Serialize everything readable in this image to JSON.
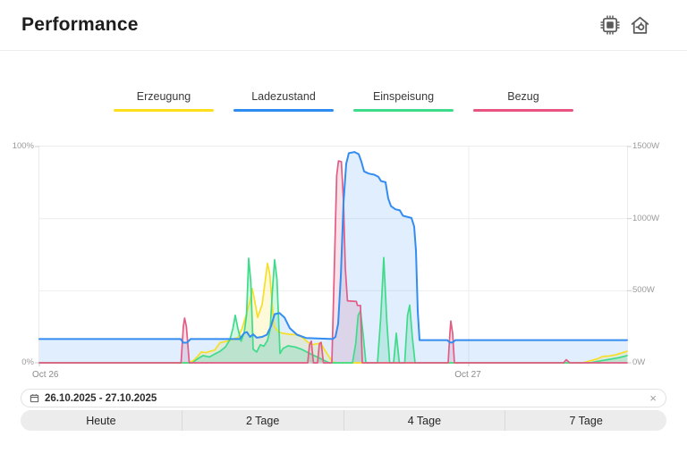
{
  "header": {
    "title": "Performance",
    "icons": [
      {
        "name": "chip-icon"
      },
      {
        "name": "home-energy-icon"
      }
    ]
  },
  "legend": {
    "items": [
      {
        "label": "Erzeugung",
        "color": "#FFDF1B"
      },
      {
        "label": "Ladezustand",
        "color": "#2E8BF0"
      },
      {
        "label": "Einspeisung",
        "color": "#3EDC8A"
      },
      {
        "label": "Bezug",
        "color": "#E8537F"
      }
    ]
  },
  "chart_data": {
    "type": "line",
    "x_hours_max": 32.85,
    "x_axis": {
      "ticks": [
        {
          "h": 0,
          "label": "Oct 26",
          "align": "left"
        },
        {
          "h": 24,
          "label": "Oct 27",
          "align": "center"
        }
      ]
    },
    "left_axis": {
      "max": 100,
      "unit": "%",
      "ticks": [
        {
          "v": 100,
          "label": "100%"
        },
        {
          "v": 0,
          "label": "0%"
        }
      ]
    },
    "right_axis": {
      "max": 1500,
      "unit": "W",
      "ticks": [
        {
          "v": 1500,
          "label": "1500W"
        },
        {
          "v": 1000,
          "label": "1000W"
        },
        {
          "v": 500,
          "label": "500W"
        },
        {
          "v": 0,
          "label": "0W"
        }
      ]
    },
    "grid": {
      "color": "#ededed",
      "tick_color": "#cfcfcf"
    },
    "series": [
      {
        "name": "Erzeugung",
        "axis": "right",
        "color": "#F7DF25",
        "fill": "rgba(246,222,46,0.18)",
        "points": [
          [
            0,
            0
          ],
          [
            8.3,
            0
          ],
          [
            8.6,
            15
          ],
          [
            8.85,
            45
          ],
          [
            9.05,
            75
          ],
          [
            9.3,
            70
          ],
          [
            9.55,
            80
          ],
          [
            9.8,
            88
          ],
          [
            10.1,
            140
          ],
          [
            10.5,
            150
          ],
          [
            10.8,
            162
          ],
          [
            11.1,
            175
          ],
          [
            11.35,
            245
          ],
          [
            11.6,
            350
          ],
          [
            11.78,
            430
          ],
          [
            11.9,
            515
          ],
          [
            12.05,
            420
          ],
          [
            12.2,
            315
          ],
          [
            12.45,
            405
          ],
          [
            12.6,
            545
          ],
          [
            12.75,
            690
          ],
          [
            12.88,
            615
          ],
          [
            13,
            420
          ],
          [
            13.12,
            255
          ],
          [
            13.35,
            215
          ],
          [
            13.6,
            205
          ],
          [
            14,
            198
          ],
          [
            14.35,
            195
          ],
          [
            14.65,
            180
          ],
          [
            14.95,
            150
          ],
          [
            15.2,
            125
          ],
          [
            15.55,
            132
          ],
          [
            15.72,
            140
          ],
          [
            15.92,
            95
          ],
          [
            16.15,
            50
          ],
          [
            16.35,
            12
          ],
          [
            16.5,
            0
          ],
          [
            30.4,
            0
          ],
          [
            30.8,
            14
          ],
          [
            31.2,
            28
          ],
          [
            31.5,
            44
          ],
          [
            31.85,
            48
          ],
          [
            32.2,
            55
          ],
          [
            32.55,
            68
          ],
          [
            32.85,
            80
          ]
        ]
      },
      {
        "name": "Einspeisung",
        "axis": "right",
        "color": "#3EDC8A",
        "fill": "rgba(62,220,138,0.22)",
        "points": [
          [
            0,
            0
          ],
          [
            8.55,
            0
          ],
          [
            8.85,
            28
          ],
          [
            9.15,
            50
          ],
          [
            9.5,
            40
          ],
          [
            9.8,
            60
          ],
          [
            10.1,
            80
          ],
          [
            10.4,
            110
          ],
          [
            10.65,
            160
          ],
          [
            10.82,
            240
          ],
          [
            10.95,
            330
          ],
          [
            11.1,
            235
          ],
          [
            11.28,
            150
          ],
          [
            11.45,
            210
          ],
          [
            11.58,
            330
          ],
          [
            11.7,
            725
          ],
          [
            11.82,
            560
          ],
          [
            11.95,
            95
          ],
          [
            12.15,
            75
          ],
          [
            12.35,
            125
          ],
          [
            12.55,
            115
          ],
          [
            12.75,
            155
          ],
          [
            12.9,
            230
          ],
          [
            13.02,
            490
          ],
          [
            13.15,
            715
          ],
          [
            13.28,
            580
          ],
          [
            13.45,
            65
          ],
          [
            13.62,
            100
          ],
          [
            13.9,
            118
          ],
          [
            14.3,
            110
          ],
          [
            14.7,
            92
          ],
          [
            15.1,
            65
          ],
          [
            15.5,
            42
          ],
          [
            15.9,
            18
          ],
          [
            16.2,
            0
          ],
          [
            17.5,
            0
          ],
          [
            17.68,
            130
          ],
          [
            17.82,
            330
          ],
          [
            17.95,
            360
          ],
          [
            18.1,
            195
          ],
          [
            18.25,
            0
          ],
          [
            18.9,
            0
          ],
          [
            19.08,
            310
          ],
          [
            19.25,
            730
          ],
          [
            19.42,
            290
          ],
          [
            19.58,
            0
          ],
          [
            19.8,
            0
          ],
          [
            19.95,
            205
          ],
          [
            20.12,
            0
          ],
          [
            20.42,
            0
          ],
          [
            20.58,
            330
          ],
          [
            20.7,
            400
          ],
          [
            20.85,
            175
          ],
          [
            21,
            0
          ],
          [
            30.8,
            0
          ],
          [
            31.3,
            12
          ],
          [
            31.9,
            25
          ],
          [
            32.4,
            36
          ],
          [
            32.85,
            50
          ]
        ]
      },
      {
        "name": "Bezug",
        "axis": "right",
        "color": "#E25C85",
        "fill": "rgba(226,92,133,0.18)",
        "points": [
          [
            0,
            0
          ],
          [
            7.92,
            0
          ],
          [
            8.05,
            255
          ],
          [
            8.12,
            310
          ],
          [
            8.22,
            250
          ],
          [
            8.38,
            0
          ],
          [
            15,
            0
          ],
          [
            15.1,
            125
          ],
          [
            15.2,
            150
          ],
          [
            15.32,
            0
          ],
          [
            15.55,
            0
          ],
          [
            15.65,
            130
          ],
          [
            15.75,
            142
          ],
          [
            15.88,
            0
          ],
          [
            16.35,
            0
          ],
          [
            16.5,
            720
          ],
          [
            16.62,
            1300
          ],
          [
            16.72,
            1400
          ],
          [
            16.88,
            1395
          ],
          [
            17,
            1120
          ],
          [
            17.1,
            660
          ],
          [
            17.22,
            430
          ],
          [
            17.72,
            425
          ],
          [
            17.78,
            398
          ],
          [
            17.95,
            398
          ],
          [
            18.05,
            0
          ],
          [
            22.85,
            0
          ],
          [
            22.95,
            210
          ],
          [
            23,
            290
          ],
          [
            23.1,
            205
          ],
          [
            23.2,
            0
          ],
          [
            29.3,
            0
          ],
          [
            29.45,
            22
          ],
          [
            29.65,
            0
          ],
          [
            32.85,
            0
          ]
        ]
      },
      {
        "name": "Ladezustand",
        "axis": "left",
        "color": "#338CF0",
        "fill": "rgba(51,140,240,0.15)",
        "points": [
          [
            0,
            11
          ],
          [
            7.9,
            11
          ],
          [
            8.05,
            9.3
          ],
          [
            8.25,
            9.3
          ],
          [
            8.45,
            11
          ],
          [
            11.2,
            11
          ],
          [
            11.45,
            13.8
          ],
          [
            11.6,
            14.2
          ],
          [
            11.78,
            12
          ],
          [
            11.95,
            13.2
          ],
          [
            12.15,
            11.6
          ],
          [
            12.45,
            12
          ],
          [
            12.72,
            13
          ],
          [
            12.95,
            17
          ],
          [
            13.15,
            22.5
          ],
          [
            13.42,
            23
          ],
          [
            13.7,
            21
          ],
          [
            14,
            16
          ],
          [
            14.4,
            13
          ],
          [
            14.9,
            11.5
          ],
          [
            16.4,
            11
          ],
          [
            16.55,
            12
          ],
          [
            16.7,
            18
          ],
          [
            16.85,
            40
          ],
          [
            17,
            74
          ],
          [
            17.15,
            92
          ],
          [
            17.3,
            97
          ],
          [
            17.62,
            97.5
          ],
          [
            17.85,
            96.5
          ],
          [
            18,
            93
          ],
          [
            18.15,
            88.5
          ],
          [
            18.42,
            87.5
          ],
          [
            18.72,
            87
          ],
          [
            18.95,
            86
          ],
          [
            19.1,
            84
          ],
          [
            19.35,
            83.5
          ],
          [
            19.5,
            76
          ],
          [
            19.65,
            72.5
          ],
          [
            19.9,
            71
          ],
          [
            20.15,
            70.5
          ],
          [
            20.32,
            68
          ],
          [
            20.55,
            67.5
          ],
          [
            20.8,
            67
          ],
          [
            20.95,
            63
          ],
          [
            21.05,
            52
          ],
          [
            21.15,
            24
          ],
          [
            21.25,
            10.5
          ],
          [
            22.8,
            10.5
          ],
          [
            22.95,
            9.4
          ],
          [
            23.1,
            9.4
          ],
          [
            23.25,
            10.5
          ],
          [
            32.85,
            10.5
          ]
        ]
      }
    ]
  },
  "range_picker": {
    "value": "26.10.2025 - 27.10.2025",
    "clear_label": "×"
  },
  "quick_ranges": [
    {
      "label": "Heute"
    },
    {
      "label": "2 Tage"
    },
    {
      "label": "4 Tage"
    },
    {
      "label": "7 Tage"
    }
  ]
}
